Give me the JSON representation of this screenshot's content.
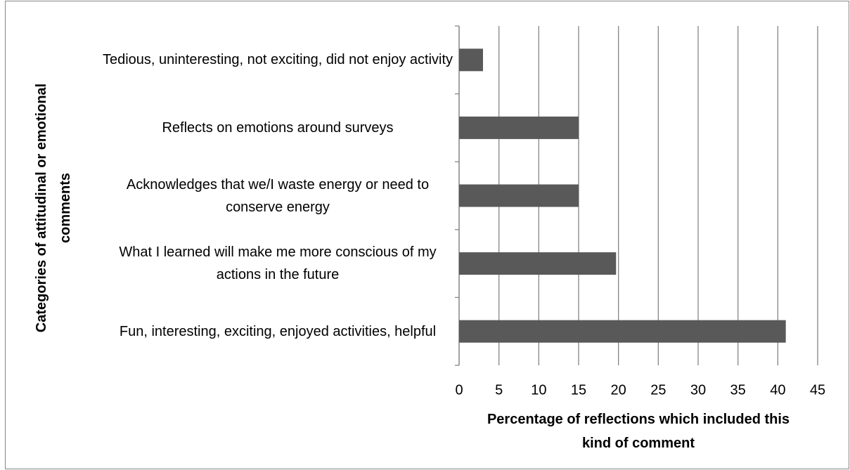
{
  "chart_data": {
    "type": "barh",
    "x_label": "Percentage of reflections which included this kind of comment",
    "y_label": "Categories of attitudinal or emotional comments",
    "categories": [
      "Tedious, uninteresting, not exciting, did not enjoy activity",
      "Reflects on emotions around surveys",
      "Acknowledges that we/I waste energy or need to conserve energy",
      "What I learned will make me more conscious of my actions in the future",
      "Fun, interesting, exciting, enjoyed activities, helpful"
    ],
    "values": [
      3,
      15,
      15,
      19.7,
      41
    ],
    "color": "#595959",
    "xlim": [
      0,
      45
    ],
    "xticks": [
      0,
      5,
      10,
      15,
      20,
      25,
      30,
      35,
      40,
      45
    ],
    "grid": true
  }
}
